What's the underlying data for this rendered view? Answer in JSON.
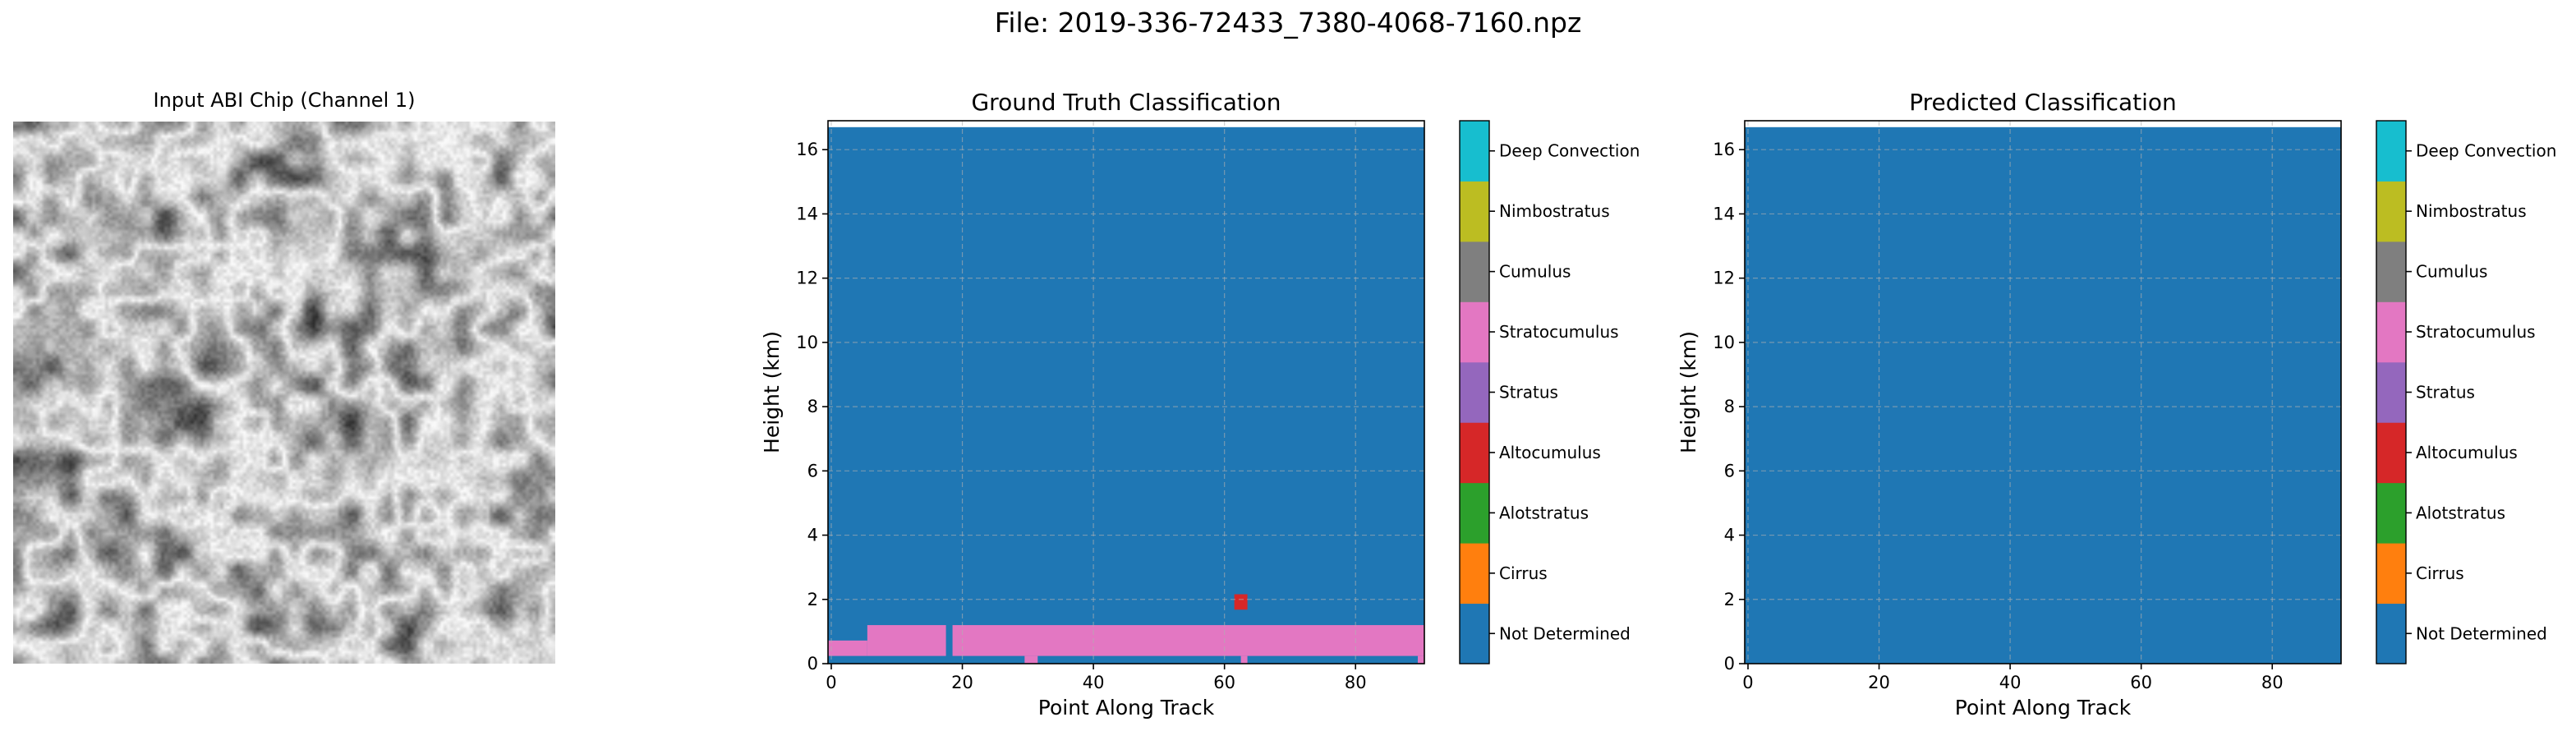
{
  "figure": {
    "suptitle": "File: 2019-336-72433_7380-4068-7160.npz"
  },
  "chip_panel": {
    "title": "Input ABI Chip (Channel 1)"
  },
  "classes": [
    {
      "name": "Not Determined",
      "color": "#1f77b4"
    },
    {
      "name": "Cirrus",
      "color": "#ff7f0e"
    },
    {
      "name": "Alotstratus",
      "color": "#2ca02c"
    },
    {
      "name": "Altocumulus",
      "color": "#d62728"
    },
    {
      "name": "Stratus",
      "color": "#9467bd"
    },
    {
      "name": "Stratocumulus",
      "color": "#e377c2"
    },
    {
      "name": "Cumulus",
      "color": "#7f7f7f"
    },
    {
      "name": "Nimbostratus",
      "color": "#bcbd22"
    },
    {
      "name": "Deep Convection",
      "color": "#17becf"
    }
  ],
  "chart_data": [
    {
      "type": "heatmap",
      "title": "Ground Truth Classification",
      "xlabel": "Point Along Track",
      "ylabel": "Height (km)",
      "xlim": [
        -0.5,
        90.5
      ],
      "ylim": [
        0,
        16.9
      ],
      "data_top_km": 16.7,
      "xticks": [
        0,
        20,
        40,
        60,
        80
      ],
      "yticks": [
        0,
        2,
        4,
        6,
        8,
        10,
        12,
        14,
        16
      ],
      "grid": true,
      "background_class": "Not Determined",
      "regions": [
        {
          "class": "Stratocumulus",
          "x": [
            -0.5,
            5.5
          ],
          "y": [
            0.24,
            0.72
          ]
        },
        {
          "class": "Stratocumulus",
          "x": [
            5.5,
            17.5
          ],
          "y": [
            0.24,
            1.2
          ]
        },
        {
          "class": "Stratocumulus",
          "x": [
            18.5,
            90.5
          ],
          "y": [
            0.24,
            1.2
          ]
        },
        {
          "class": "Stratocumulus",
          "x": [
            29.5,
            31.5
          ],
          "y": [
            0,
            0.24
          ]
        },
        {
          "class": "Stratocumulus",
          "x": [
            62.5,
            63.5
          ],
          "y": [
            0,
            0.24
          ]
        },
        {
          "class": "Stratocumulus",
          "x": [
            89.5,
            90.5
          ],
          "y": [
            0,
            0.24
          ]
        },
        {
          "class": "Altocumulus",
          "x": [
            61.5,
            63.5
          ],
          "y": [
            1.68,
            2.16
          ]
        }
      ],
      "colorbar_labels": [
        "Not Determined",
        "Cirrus",
        "Alotstratus",
        "Altocumulus",
        "Stratus",
        "Stratocumulus",
        "Cumulus",
        "Nimbostratus",
        "Deep Convection"
      ]
    },
    {
      "type": "heatmap",
      "title": "Predicted Classification",
      "xlabel": "Point Along Track",
      "ylabel": "Height (km)",
      "xlim": [
        -0.5,
        90.5
      ],
      "ylim": [
        0,
        16.9
      ],
      "data_top_km": 16.7,
      "xticks": [
        0,
        20,
        40,
        60,
        80
      ],
      "yticks": [
        0,
        2,
        4,
        6,
        8,
        10,
        12,
        14,
        16
      ],
      "grid": true,
      "background_class": "Not Determined",
      "regions": [],
      "colorbar_labels": [
        "Not Determined",
        "Cirrus",
        "Alotstratus",
        "Altocumulus",
        "Stratus",
        "Stratocumulus",
        "Cumulus",
        "Nimbostratus",
        "Deep Convection"
      ]
    }
  ]
}
